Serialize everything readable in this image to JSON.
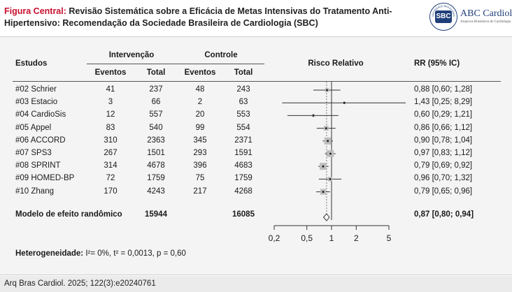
{
  "header": {
    "title_lead": "Figura Central:",
    "title_rest": " Revisão Sistemática sobre a Eficácia de Metas Intensivas do Tratamento Anti-Hipertensivo: Recomendação da Sociedade Brasileira de Cardiologia (SBC)",
    "logo_seal": "SBC",
    "logo_seal_ring_text": "SOCIEDADE BRASILEIRA DE CARDIOLOGIA",
    "journal_name": "ABC Cardiol",
    "journal_sub": "Arquivos Brasileiros de Cardiologia"
  },
  "table": {
    "col_studies": "Estudos",
    "group_intervention": "Intervenção",
    "group_control": "Controle",
    "col_events": "Eventos",
    "col_total": "Total",
    "col_risk": "Risco Relativo",
    "col_rr": "RR (95% IC)",
    "rows": [
      {
        "study": "#02 Schrier",
        "int_events": "41",
        "int_total": "237",
        "ctl_events": "48",
        "ctl_total": "243",
        "rr_text": "0,88 [0,60; 1,28]"
      },
      {
        "study": "#03 Estacio",
        "int_events": "3",
        "int_total": "66",
        "ctl_events": "2",
        "ctl_total": "63",
        "rr_text": "1,43 [0,25; 8,29]"
      },
      {
        "study": "#04 CardioSis",
        "int_events": "12",
        "int_total": "557",
        "ctl_events": "20",
        "ctl_total": "553",
        "rr_text": "0,60 [0,29; 1,21]"
      },
      {
        "study": "#05 Appel",
        "int_events": "83",
        "int_total": "540",
        "ctl_events": "99",
        "ctl_total": "554",
        "rr_text": "0,86 [0,66; 1,12]"
      },
      {
        "study": "#06 ACCORD",
        "int_events": "310",
        "int_total": "2363",
        "ctl_events": "345",
        "ctl_total": "2371",
        "rr_text": "0,90 [0,78; 1,04]"
      },
      {
        "study": "#07 SPS3",
        "int_events": "267",
        "int_total": "1501",
        "ctl_events": "293",
        "ctl_total": "1591",
        "rr_text": "0,97 [0,83; 1,12]"
      },
      {
        "study": "#08 SPRINT",
        "int_events": "314",
        "int_total": "4678",
        "ctl_events": "396",
        "ctl_total": "4683",
        "rr_text": "0,79 [0,69; 0,92]"
      },
      {
        "study": "#09 HOMED-BP",
        "int_events": "72",
        "int_total": "1759",
        "ctl_events": "75",
        "ctl_total": "1759",
        "rr_text": "0,96 [0,70; 1,32]"
      },
      {
        "study": "#10 Zhang",
        "int_events": "170",
        "int_total": "4243",
        "ctl_events": "217",
        "ctl_total": "4268",
        "rr_text": "0,79 [0,65; 0,96]"
      }
    ],
    "summary": {
      "label": "Modelo de efeito randômico",
      "int_total": "15944",
      "ctl_total": "16085",
      "rr_text": "0,87 [0,80; 0,94]"
    },
    "heterogeneity_label": "Heterogeneidade:",
    "heterogeneity_value": " I²= 0%, t² = 0,0013, p = 0,60"
  },
  "chart_data": {
    "type": "forest",
    "scale": "log",
    "xlim": [
      0.2,
      5
    ],
    "ticks": [
      "0,2",
      "0,5",
      "1",
      "2",
      "5"
    ],
    "tick_values": [
      0.2,
      0.5,
      1,
      2,
      5
    ],
    "null_value": 1,
    "studies": [
      {
        "study": "#02 Schrier",
        "rr": 0.88,
        "lo": 0.6,
        "hi": 1.28
      },
      {
        "study": "#03 Estacio",
        "rr": 1.43,
        "lo": 0.25,
        "hi": 8.29
      },
      {
        "study": "#04 CardioSis",
        "rr": 0.6,
        "lo": 0.29,
        "hi": 1.21
      },
      {
        "study": "#05 Appel",
        "rr": 0.86,
        "lo": 0.66,
        "hi": 1.12
      },
      {
        "study": "#06 ACCORD",
        "rr": 0.9,
        "lo": 0.78,
        "hi": 1.04
      },
      {
        "study": "#07 SPS3",
        "rr": 0.97,
        "lo": 0.83,
        "hi": 1.12
      },
      {
        "study": "#08 SPRINT",
        "rr": 0.79,
        "lo": 0.69,
        "hi": 0.92
      },
      {
        "study": "#09 HOMED-BP",
        "rr": 0.96,
        "lo": 0.7,
        "hi": 1.32
      },
      {
        "study": "#10 Zhang",
        "rr": 0.79,
        "lo": 0.65,
        "hi": 0.96
      }
    ],
    "pooled": {
      "rr": 0.87,
      "lo": 0.8,
      "hi": 0.94
    },
    "colors": {
      "weight_box": "#bdbdbd",
      "line": "#333333"
    }
  },
  "footer": {
    "citation": "Arq Bras Cardiol. 2025; 122(3):e20240761"
  }
}
